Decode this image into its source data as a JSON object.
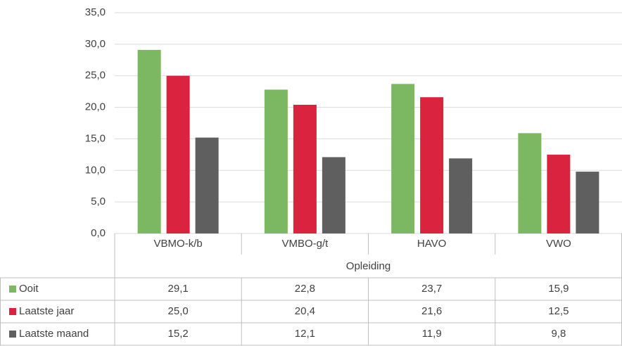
{
  "chart_data": {
    "type": "bar",
    "categories": [
      "VBMO-k/b",
      "VMBO-g/t",
      "HAVO",
      "VWO"
    ],
    "x_label": "Opleiding",
    "series": [
      {
        "name": "Ooit",
        "color": "#7cb861",
        "values": [
          29.1,
          22.8,
          23.7,
          15.9
        ],
        "value_labels": [
          "29,1",
          "22,8",
          "23,7",
          "15,9"
        ]
      },
      {
        "name": "Laatste jaar",
        "color": "#d9233f",
        "values": [
          25.0,
          20.4,
          21.6,
          12.5
        ],
        "value_labels": [
          "25,0",
          "20,4",
          "21,6",
          "12,5"
        ]
      },
      {
        "name": "Laatste maand",
        "color": "#5f5f5f",
        "values": [
          15.2,
          12.1,
          11.9,
          9.8
        ],
        "value_labels": [
          "15,2",
          "12,1",
          "11,9",
          "9,8"
        ]
      }
    ],
    "ylim": [
      0,
      35
    ],
    "yticks": [
      {
        "value": 0,
        "label": "0,0"
      },
      {
        "value": 5,
        "label": "5,0"
      },
      {
        "value": 10,
        "label": "10,0"
      },
      {
        "value": 15,
        "label": "15,0"
      },
      {
        "value": 20,
        "label": "20,0"
      },
      {
        "value": 25,
        "label": "25,0"
      },
      {
        "value": 30,
        "label": "30,0"
      },
      {
        "value": 35,
        "label": "35,0"
      }
    ],
    "grid": true
  }
}
